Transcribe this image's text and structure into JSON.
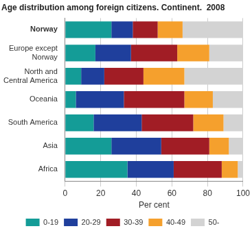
{
  "chart_data": {
    "type": "bar",
    "title": "Age distribution among foreign citizens. Continent.  2008",
    "x_label": "Per cent",
    "orientation": "horizontal",
    "stacked": true,
    "grid": true,
    "legend": "bottom",
    "categories": [
      "Norway",
      "Europe except Norway",
      "North and Central America",
      "Oceania",
      "South America",
      "Asia",
      "Africa"
    ],
    "series": [
      {
        "name": "0-19",
        "color": "#149c97",
        "values": [
          26,
          17,
          9,
          6,
          16,
          26,
          35
        ]
      },
      {
        "name": "20-29",
        "color": "#1f3f9c",
        "values": [
          12,
          20,
          13,
          27,
          27,
          28,
          26
        ]
      },
      {
        "name": "30-39",
        "color": "#a11d25",
        "values": [
          14,
          26,
          22,
          34,
          29,
          27,
          27
        ]
      },
      {
        "name": "40-49",
        "color": "#f5a02d",
        "values": [
          14,
          18,
          23,
          16,
          17,
          11,
          9
        ]
      },
      {
        "name": "50-",
        "color": "#d3d3d3",
        "values": [
          34,
          19,
          33,
          17,
          11,
          8,
          3
        ]
      }
    ],
    "xlim": [
      0,
      100
    ],
    "xticks": [
      0,
      20,
      40,
      60,
      80,
      100
    ]
  }
}
